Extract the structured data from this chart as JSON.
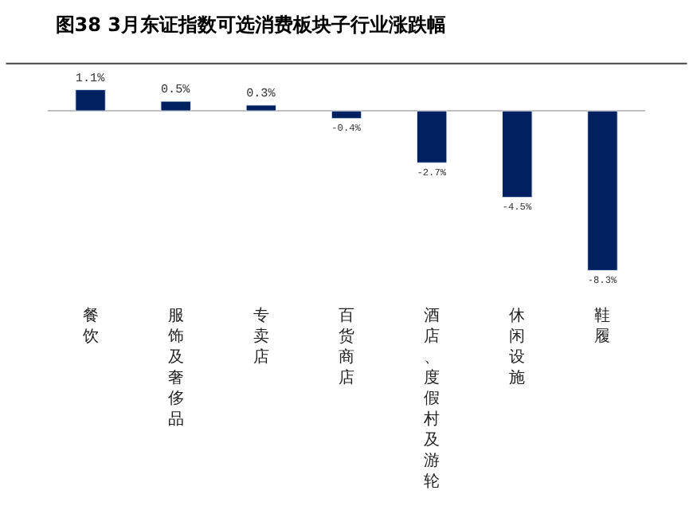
{
  "chart_data": {
    "type": "bar",
    "title": "图38 3月东证指数可选消费板块子行业涨跌幅",
    "categories": [
      "餐饮",
      "服饰及奢侈品",
      "专卖店",
      "百货商店",
      "酒店、度假村及游轮",
      "休闲设施",
      "鞋履"
    ],
    "values": [
      1.1,
      0.5,
      0.3,
      -0.4,
      -2.7,
      -4.5,
      -8.3
    ],
    "value_labels": [
      "1.1%",
      "0.5%",
      "0.3%",
      "-0.4%",
      "-2.7%",
      "-4.5%",
      "-8.3%"
    ],
    "color": "#002060"
  }
}
